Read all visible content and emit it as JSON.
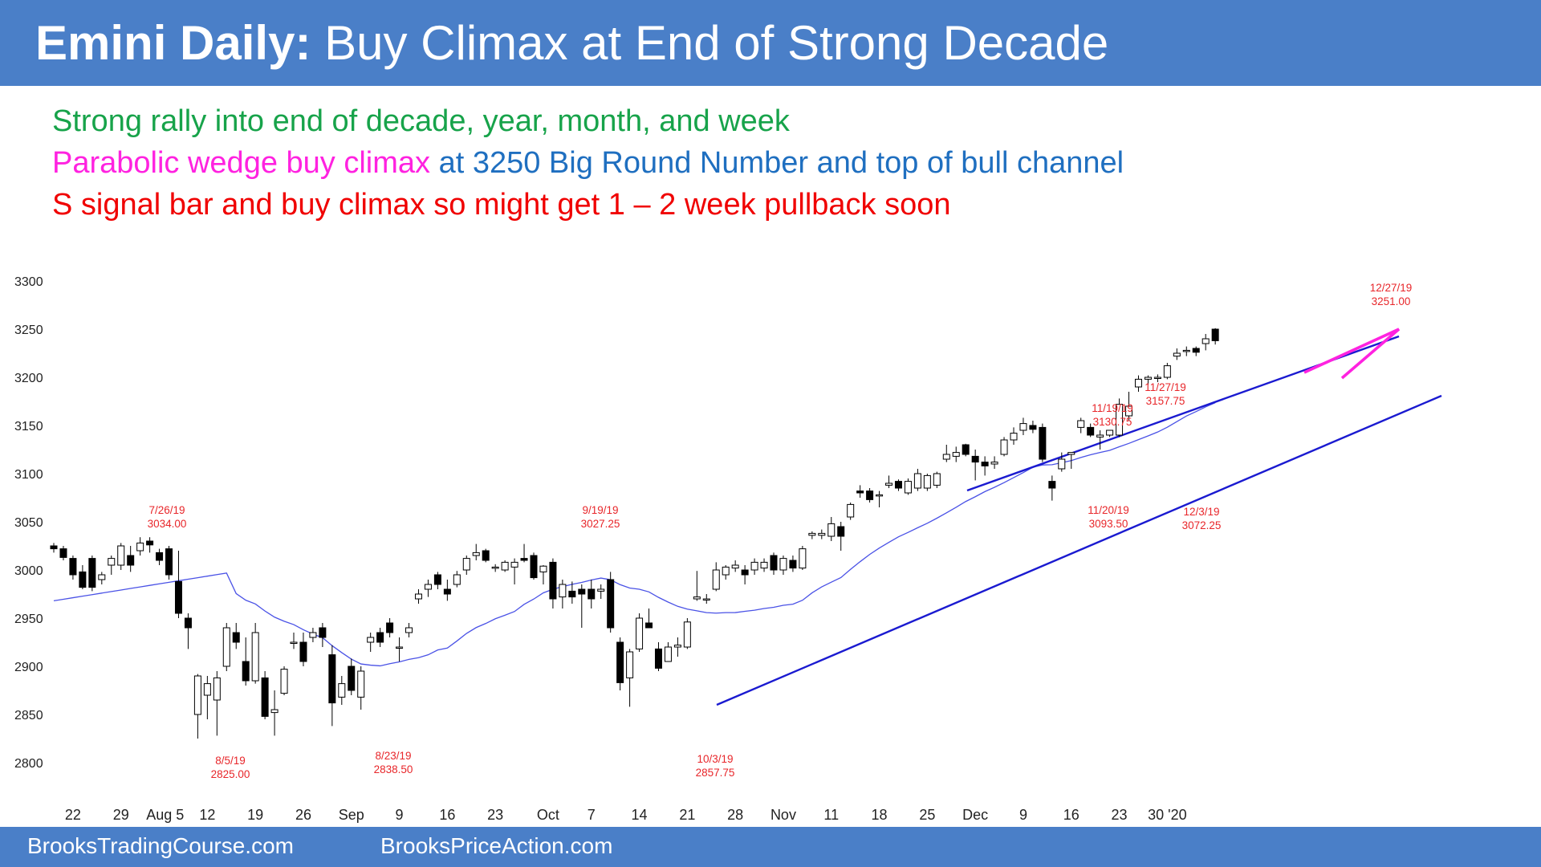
{
  "header": {
    "title_bold": "Emini Daily:",
    "title_rest": "Buy Climax at End of Strong Decade"
  },
  "notes": {
    "line1": "Strong rally into end of decade, year, month, and week",
    "line2_a": "Parabolic wedge buy climax",
    "line2_b": "at 3250 Big Round Number and top of bull channel",
    "line3": "S signal bar and buy climax so might get 1 – 2 week pullback soon"
  },
  "footer": {
    "left": "BrooksTradingCourse.com",
    "right": "BrooksPriceAction.com"
  },
  "colors": {
    "header_bg": "#4a7fc8",
    "bull_line": "#17a34a",
    "wedge": "#ff22e0",
    "channel": "#1a1ad0",
    "ma": "#4a52e6",
    "annotation": "#e8262a"
  },
  "chart_data": {
    "type": "candlestick",
    "ylim": [
      2800,
      3300
    ],
    "yticks": [
      "3300",
      "3250",
      "3200",
      "3150",
      "3100",
      "3050",
      "3000",
      "2950",
      "2900",
      "2850",
      "2800"
    ],
    "xticks": [
      "22",
      "29",
      "Aug 5",
      "12",
      "19",
      "26",
      "Sep",
      "9",
      "16",
      "23",
      "Oct",
      "7",
      "14",
      "21",
      "28",
      "Nov",
      "11",
      "18",
      "25",
      "Dec",
      "9",
      "16",
      "23",
      "30 '20"
    ],
    "candles": [
      {
        "o": 3025,
        "h": 3028,
        "l": 3018,
        "c": 3022
      },
      {
        "o": 3022,
        "h": 3025,
        "l": 3010,
        "c": 3013
      },
      {
        "o": 3012,
        "h": 3015,
        "l": 2990,
        "c": 2995
      },
      {
        "o": 2998,
        "h": 3005,
        "l": 2980,
        "c": 2982
      },
      {
        "o": 3012,
        "h": 3015,
        "l": 2978,
        "c": 2982
      },
      {
        "o": 2990,
        "h": 2998,
        "l": 2985,
        "c": 2995
      },
      {
        "o": 3005,
        "h": 3015,
        "l": 2995,
        "c": 3012
      },
      {
        "o": 3005,
        "h": 3028,
        "l": 3000,
        "c": 3025
      },
      {
        "o": 3015,
        "h": 3025,
        "l": 2998,
        "c": 3005
      },
      {
        "o": 3020,
        "h": 3034,
        "l": 3015,
        "c": 3028
      },
      {
        "o": 3030,
        "h": 3034,
        "l": 3018,
        "c": 3026
      },
      {
        "o": 3018,
        "h": 3022,
        "l": 3005,
        "c": 3010
      },
      {
        "o": 3022,
        "h": 3025,
        "l": 2990,
        "c": 2995
      },
      {
        "o": 2988,
        "h": 3020,
        "l": 2950,
        "c": 2955
      },
      {
        "o": 2950,
        "h": 2955,
        "l": 2918,
        "c": 2940
      },
      {
        "o": 2850,
        "h": 2892,
        "l": 2825,
        "c": 2890
      },
      {
        "o": 2870,
        "h": 2890,
        "l": 2845,
        "c": 2882
      },
      {
        "o": 2865,
        "h": 2895,
        "l": 2828,
        "c": 2888
      },
      {
        "o": 2900,
        "h": 2945,
        "l": 2895,
        "c": 2940
      },
      {
        "o": 2935,
        "h": 2945,
        "l": 2918,
        "c": 2925
      },
      {
        "o": 2905,
        "h": 2930,
        "l": 2880,
        "c": 2885
      },
      {
        "o": 2885,
        "h": 2945,
        "l": 2882,
        "c": 2935
      },
      {
        "o": 2888,
        "h": 2895,
        "l": 2845,
        "c": 2848
      },
      {
        "o": 2852,
        "h": 2875,
        "l": 2828,
        "c": 2855
      },
      {
        "o": 2872,
        "h": 2900,
        "l": 2870,
        "c": 2897
      },
      {
        "o": 2925,
        "h": 2935,
        "l": 2918,
        "c": 2925
      },
      {
        "o": 2925,
        "h": 2935,
        "l": 2900,
        "c": 2905
      },
      {
        "o": 2930,
        "h": 2940,
        "l": 2925,
        "c": 2935
      },
      {
        "o": 2940,
        "h": 2945,
        "l": 2920,
        "c": 2930
      },
      {
        "o": 2912,
        "h": 2922,
        "l": 2838,
        "c": 2862
      },
      {
        "o": 2868,
        "h": 2890,
        "l": 2860,
        "c": 2882
      },
      {
        "o": 2900,
        "h": 2908,
        "l": 2870,
        "c": 2875
      },
      {
        "o": 2868,
        "h": 2900,
        "l": 2855,
        "c": 2895
      },
      {
        "o": 2925,
        "h": 2935,
        "l": 2915,
        "c": 2930
      },
      {
        "o": 2935,
        "h": 2940,
        "l": 2920,
        "c": 2925
      },
      {
        "o": 2945,
        "h": 2950,
        "l": 2930,
        "c": 2935
      },
      {
        "o": 2920,
        "h": 2930,
        "l": 2905,
        "c": 2920
      },
      {
        "o": 2935,
        "h": 2945,
        "l": 2930,
        "c": 2940
      },
      {
        "o": 2970,
        "h": 2980,
        "l": 2965,
        "c": 2975
      },
      {
        "o": 2980,
        "h": 2990,
        "l": 2972,
        "c": 2985
      },
      {
        "o": 2995,
        "h": 2998,
        "l": 2980,
        "c": 2985
      },
      {
        "o": 2980,
        "h": 2990,
        "l": 2968,
        "c": 2975
      },
      {
        "o": 2985,
        "h": 2999,
        "l": 2982,
        "c": 2995
      },
      {
        "o": 3000,
        "h": 3015,
        "l": 2995,
        "c": 3012
      },
      {
        "o": 3015,
        "h": 3027,
        "l": 3010,
        "c": 3018
      },
      {
        "o": 3020,
        "h": 3022,
        "l": 3008,
        "c": 3010
      },
      {
        "o": 3002,
        "h": 3006,
        "l": 2998,
        "c": 3003
      },
      {
        "o": 3000,
        "h": 3010,
        "l": 2998,
        "c": 3008
      },
      {
        "o": 3003,
        "h": 3012,
        "l": 2985,
        "c": 3008
      },
      {
        "o": 3012,
        "h": 3027,
        "l": 3008,
        "c": 3010
      },
      {
        "o": 3015,
        "h": 3018,
        "l": 2990,
        "c": 2992
      },
      {
        "o": 2998,
        "h": 3005,
        "l": 2985,
        "c": 3004
      },
      {
        "o": 3008,
        "h": 3012,
        "l": 2960,
        "c": 2970
      },
      {
        "o": 2972,
        "h": 2990,
        "l": 2960,
        "c": 2985
      },
      {
        "o": 2978,
        "h": 2988,
        "l": 2965,
        "c": 2972
      },
      {
        "o": 2980,
        "h": 2985,
        "l": 2940,
        "c": 2975
      },
      {
        "o": 2980,
        "h": 2990,
        "l": 2960,
        "c": 2970
      },
      {
        "o": 2978,
        "h": 2985,
        "l": 2970,
        "c": 2980
      },
      {
        "o": 2990,
        "h": 2998,
        "l": 2935,
        "c": 2940
      },
      {
        "o": 2925,
        "h": 2930,
        "l": 2875,
        "c": 2883
      },
      {
        "o": 2888,
        "h": 2918,
        "l": 2858,
        "c": 2915
      },
      {
        "o": 2918,
        "h": 2955,
        "l": 2915,
        "c": 2950
      },
      {
        "o": 2945,
        "h": 2960,
        "l": 2940,
        "c": 2940
      },
      {
        "o": 2918,
        "h": 2925,
        "l": 2895,
        "c": 2898
      },
      {
        "o": 2905,
        "h": 2925,
        "l": 2905,
        "c": 2920
      },
      {
        "o": 2920,
        "h": 2930,
        "l": 2910,
        "c": 2922
      },
      {
        "o": 2920,
        "h": 2950,
        "l": 2918,
        "c": 2946
      },
      {
        "o": 2970,
        "h": 2999,
        "l": 2968,
        "c": 2972
      },
      {
        "o": 2970,
        "h": 2975,
        "l": 2965,
        "c": 2970
      },
      {
        "o": 2980,
        "h": 3008,
        "l": 2978,
        "c": 3000
      },
      {
        "o": 2995,
        "h": 3005,
        "l": 2990,
        "c": 3003
      },
      {
        "o": 3002,
        "h": 3010,
        "l": 2998,
        "c": 3005
      },
      {
        "o": 3000,
        "h": 3005,
        "l": 2985,
        "c": 2995
      },
      {
        "o": 3000,
        "h": 3012,
        "l": 2995,
        "c": 3008
      },
      {
        "o": 3002,
        "h": 3012,
        "l": 2998,
        "c": 3008
      },
      {
        "o": 3015,
        "h": 3018,
        "l": 2995,
        "c": 3000
      },
      {
        "o": 3000,
        "h": 3015,
        "l": 2995,
        "c": 3012
      },
      {
        "o": 3010,
        "h": 3015,
        "l": 2998,
        "c": 3002
      },
      {
        "o": 3002,
        "h": 3025,
        "l": 3000,
        "c": 3022
      },
      {
        "o": 3036,
        "h": 3040,
        "l": 3032,
        "c": 3038
      },
      {
        "o": 3036,
        "h": 3042,
        "l": 3032,
        "c": 3038
      },
      {
        "o": 3035,
        "h": 3055,
        "l": 3030,
        "c": 3048
      },
      {
        "o": 3045,
        "h": 3050,
        "l": 3020,
        "c": 3035
      },
      {
        "o": 3055,
        "h": 3070,
        "l": 3052,
        "c": 3068
      },
      {
        "o": 3082,
        "h": 3088,
        "l": 3075,
        "c": 3080
      },
      {
        "o": 3082,
        "h": 3085,
        "l": 3070,
        "c": 3073
      },
      {
        "o": 3078,
        "h": 3082,
        "l": 3065,
        "c": 3078
      },
      {
        "o": 3088,
        "h": 3098,
        "l": 3085,
        "c": 3090
      },
      {
        "o": 3092,
        "h": 3094,
        "l": 3082,
        "c": 3085
      },
      {
        "o": 3080,
        "h": 3095,
        "l": 3078,
        "c": 3092
      },
      {
        "o": 3085,
        "h": 3105,
        "l": 3082,
        "c": 3100
      },
      {
        "o": 3085,
        "h": 3100,
        "l": 3082,
        "c": 3098
      },
      {
        "o": 3088,
        "h": 3102,
        "l": 3085,
        "c": 3100
      },
      {
        "o": 3115,
        "h": 3130,
        "l": 3112,
        "c": 3120
      },
      {
        "o": 3118,
        "h": 3128,
        "l": 3112,
        "c": 3122
      },
      {
        "o": 3130,
        "h": 3131,
        "l": 3118,
        "c": 3120
      },
      {
        "o": 3118,
        "h": 3125,
        "l": 3093,
        "c": 3112
      },
      {
        "o": 3112,
        "h": 3118,
        "l": 3098,
        "c": 3108
      },
      {
        "o": 3110,
        "h": 3118,
        "l": 3105,
        "c": 3112
      },
      {
        "o": 3120,
        "h": 3138,
        "l": 3118,
        "c": 3135
      },
      {
        "o": 3135,
        "h": 3148,
        "l": 3130,
        "c": 3142
      },
      {
        "o": 3145,
        "h": 3158,
        "l": 3140,
        "c": 3152
      },
      {
        "o": 3150,
        "h": 3155,
        "l": 3142,
        "c": 3146
      },
      {
        "o": 3148,
        "h": 3152,
        "l": 3112,
        "c": 3115
      },
      {
        "o": 3092,
        "h": 3098,
        "l": 3072,
        "c": 3085
      },
      {
        "o": 3105,
        "h": 3122,
        "l": 3102,
        "c": 3115
      },
      {
        "o": 3120,
        "h": 3122,
        "l": 3105,
        "c": 3122
      },
      {
        "o": 3148,
        "h": 3158,
        "l": 3142,
        "c": 3155
      },
      {
        "o": 3148,
        "h": 3152,
        "l": 3138,
        "c": 3140
      },
      {
        "o": 3138,
        "h": 3145,
        "l": 3125,
        "c": 3140
      },
      {
        "o": 3140,
        "h": 3145,
        "l": 3138,
        "c": 3145
      },
      {
        "o": 3140,
        "h": 3178,
        "l": 3138,
        "c": 3172
      },
      {
        "o": 3160,
        "h": 3185,
        "l": 3155,
        "c": 3170
      },
      {
        "o": 3190,
        "h": 3202,
        "l": 3185,
        "c": 3198
      },
      {
        "o": 3198,
        "h": 3202,
        "l": 3192,
        "c": 3200
      },
      {
        "o": 3200,
        "h": 3203,
        "l": 3195,
        "c": 3200
      },
      {
        "o": 3200,
        "h": 3215,
        "l": 3198,
        "c": 3212
      },
      {
        "o": 3222,
        "h": 3230,
        "l": 3218,
        "c": 3225
      },
      {
        "o": 3228,
        "h": 3232,
        "l": 3222,
        "c": 3228
      },
      {
        "o": 3230,
        "h": 3232,
        "l": 3222,
        "c": 3226
      },
      {
        "o": 3235,
        "h": 3245,
        "l": 3228,
        "c": 3240
      },
      {
        "o": 3250,
        "h": 3251,
        "l": 3234,
        "c": 3238
      }
    ],
    "annotations": [
      {
        "date": "7/26/19",
        "price": "3034.00"
      },
      {
        "date": "8/5/19",
        "price": "2825.00"
      },
      {
        "date": "8/23/19",
        "price": "2838.50"
      },
      {
        "date": "9/19/19",
        "price": "3027.25"
      },
      {
        "date": "10/3/19",
        "price": "2857.75"
      },
      {
        "date": "11/19/19",
        "price": "3130.75"
      },
      {
        "date": "11/20/19",
        "price": "3093.50"
      },
      {
        "date": "11/27/19",
        "price": "3157.75"
      },
      {
        "date": "12/3/19",
        "price": "3072.25"
      },
      {
        "date": "12/27/19",
        "price": "3251.00"
      }
    ]
  }
}
